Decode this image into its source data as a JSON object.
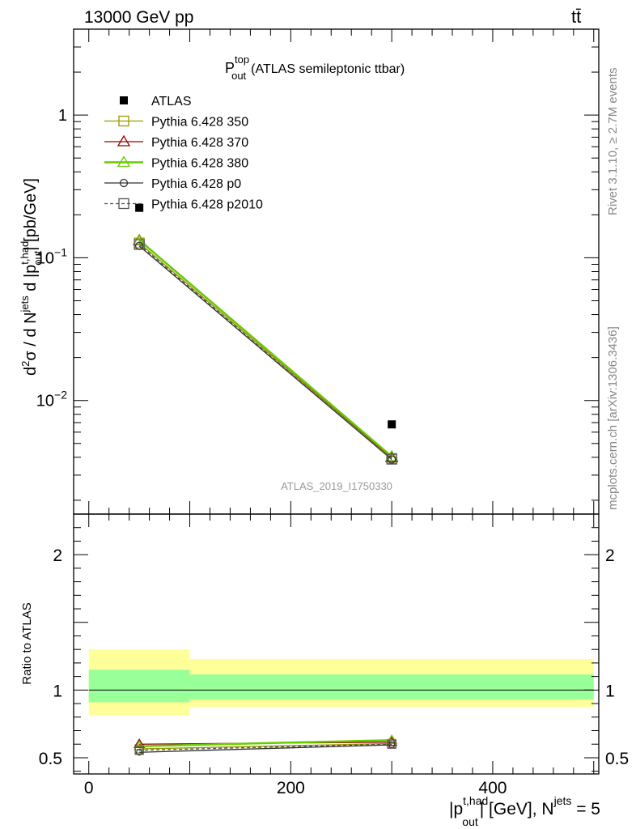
{
  "header": {
    "energy_label": "13000 GeV pp",
    "process_label": "tt̄"
  },
  "side_labels": {
    "rivet": "Rivet 3.1.10, ≥ 2.7M events",
    "mcplots": "mcplots.cern.ch [arXiv:1306.3436]"
  },
  "chart_data": [
    {
      "type": "line",
      "title_main": "P",
      "title_sup": "top",
      "title_sub": "out",
      "title_rest": "(ATLAS semileptonic ttbar)",
      "analysis_label": "ATLAS_2019_I1750330",
      "ylabel": "d²σ / d N^jets d |p_out^t,had| [pb/GeV]",
      "yscale": "log",
      "ylim": [
        0.0016,
        4.0
      ],
      "xlim": [
        -15,
        505
      ],
      "y_tick_labels": [
        {
          "base": "1",
          "exp": "",
          "value": 1
        },
        {
          "base": "10",
          "exp": "−1",
          "value": 0.1
        },
        {
          "base": "10",
          "exp": "−2",
          "value": 0.01
        }
      ],
      "legend_position": "top-left",
      "series": [
        {
          "name": "ATLAS",
          "marker": "filled-square",
          "color": "#000000",
          "dash": "",
          "x": [
            50,
            300
          ],
          "y": [
            0.224,
            0.0068
          ]
        },
        {
          "name": "Pythia 6.428 350",
          "marker": "open-square",
          "color": "#999900",
          "dash": "",
          "x": [
            50,
            300
          ],
          "y": [
            0.127,
            0.00392
          ]
        },
        {
          "name": "Pythia 6.428 370",
          "marker": "open-triangle",
          "color": "#990000",
          "dash": "",
          "x": [
            50,
            300
          ],
          "y": [
            0.132,
            0.00398
          ]
        },
        {
          "name": "Pythia 6.428 380",
          "marker": "open-triangle",
          "color": "#66cc00",
          "dash": "",
          "x": [
            50,
            300
          ],
          "y": [
            0.133,
            0.00405
          ]
        },
        {
          "name": "Pythia 6.428 p0",
          "marker": "open-circle",
          "color": "#333333",
          "dash": "",
          "x": [
            50,
            300
          ],
          "y": [
            0.121,
            0.00386
          ]
        },
        {
          "name": "Pythia 6.428 p2010",
          "marker": "open-square",
          "color": "#555555",
          "dash": "4,3",
          "x": [
            50,
            300
          ],
          "y": [
            0.124,
            0.00388
          ]
        }
      ]
    },
    {
      "type": "line",
      "ylabel": "Ratio to ATLAS",
      "xlabel_main": "|p",
      "xlabel_sup": "t,had",
      "xlabel_sub": "out",
      "xlabel_rest": "| [GeV], N",
      "xlabel_sup2": "jets",
      "xlabel_tail": " = 5",
      "ylim": [
        0.38,
        2.3
      ],
      "xlim": [
        -15,
        505
      ],
      "y_tick_labels": [
        "0.5",
        "1",
        "2"
      ],
      "y_ticks": [
        0.5,
        1,
        2
      ],
      "x_tick_labels": [
        "0",
        "200",
        "400"
      ],
      "x_ticks": [
        0,
        200,
        400
      ],
      "bands": [
        {
          "x0": 0,
          "x1": 100,
          "yellow": [
            0.815,
            1.3
          ],
          "green": [
            0.91,
            1.15
          ]
        },
        {
          "x0": 100,
          "x1": 500,
          "yellow": [
            0.875,
            1.23
          ],
          "green": [
            0.93,
            1.115
          ]
        }
      ],
      "series": [
        {
          "name": "Pythia 6.428 350",
          "marker": "open-square",
          "color": "#999900",
          "dash": "",
          "x": [
            50,
            300
          ],
          "y": [
            0.565,
            0.605
          ]
        },
        {
          "name": "Pythia 6.428 370",
          "marker": "open-triangle",
          "color": "#990000",
          "dash": "",
          "x": [
            50,
            300
          ],
          "y": [
            0.6,
            0.615
          ]
        },
        {
          "name": "Pythia 6.428 380",
          "marker": "open-triangle",
          "color": "#66cc00",
          "dash": "",
          "x": [
            50,
            300
          ],
          "y": [
            0.585,
            0.63
          ]
        },
        {
          "name": "Pythia 6.428 p0",
          "marker": "open-circle",
          "color": "#333333",
          "dash": "",
          "x": [
            50,
            300
          ],
          "y": [
            0.54,
            0.595
          ]
        },
        {
          "name": "Pythia 6.428 p2010",
          "marker": "open-square",
          "color": "#555555",
          "dash": "4,3",
          "x": [
            50,
            300
          ],
          "y": [
            0.555,
            0.6
          ]
        }
      ]
    }
  ]
}
